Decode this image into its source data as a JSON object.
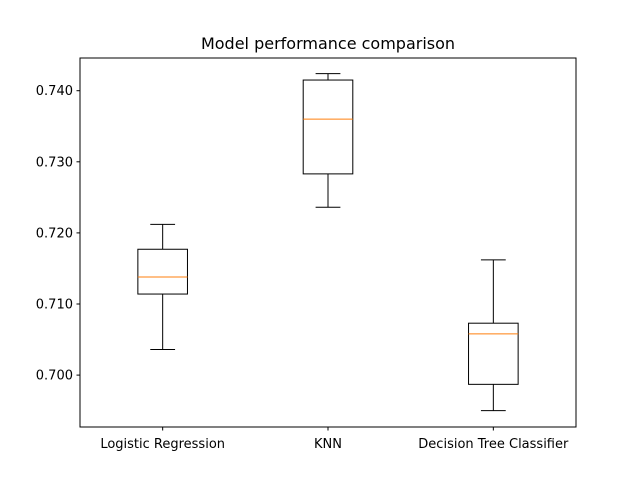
{
  "chart_data": {
    "type": "box",
    "title": "Model performance comparison",
    "xlabel": "",
    "ylabel": "",
    "ylim": [
      0.6927,
      0.7446
    ],
    "yticks": [
      0.7,
      0.71,
      0.72,
      0.73,
      0.74
    ],
    "ytick_labels": [
      "0.700",
      "0.710",
      "0.720",
      "0.730",
      "0.740"
    ],
    "grid": false,
    "categories": [
      "Logistic Regression",
      "KNN",
      "Decision Tree Classifier"
    ],
    "boxes": [
      {
        "label": "Logistic Regression",
        "whisker_low": 0.7036,
        "q1": 0.7114,
        "median": 0.7138,
        "q3": 0.7177,
        "whisker_high": 0.7212
      },
      {
        "label": "KNN",
        "whisker_low": 0.7236,
        "q1": 0.7283,
        "median": 0.736,
        "q3": 0.7415,
        "whisker_high": 0.7424
      },
      {
        "label": "Decision Tree Classifier",
        "whisker_low": 0.695,
        "q1": 0.6987,
        "median": 0.7058,
        "q3": 0.7073,
        "whisker_high": 0.7162
      }
    ],
    "colors": {
      "box": "#000000",
      "median": "#ff7f0e",
      "background": "#ffffff"
    }
  }
}
